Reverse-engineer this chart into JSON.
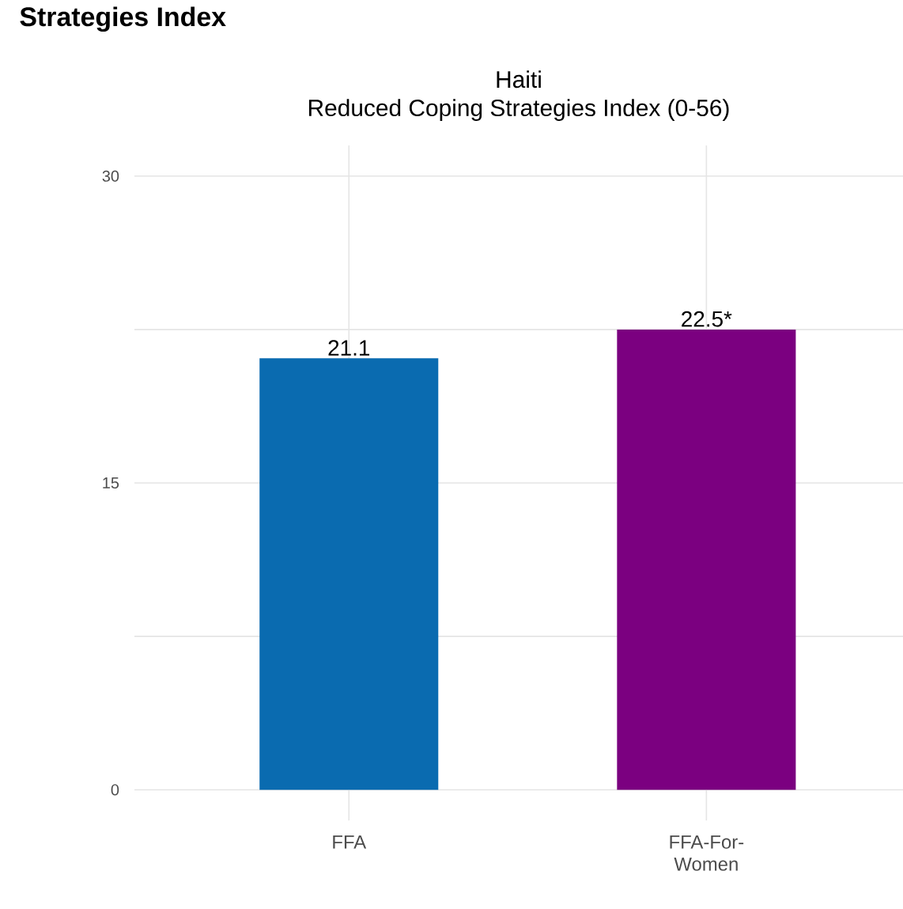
{
  "chart_data": {
    "type": "bar",
    "title": "Haiti",
    "subtitle": "Reduced Coping Strategies Index (0-56)",
    "annotations": [
      "Strategies Index"
    ],
    "categories": [
      "FFA",
      "FFA-For-Women"
    ],
    "values": [
      21.1,
      22.5
    ],
    "colors": [
      "#0a6bb0",
      "#7b0080"
    ],
    "value_labels": [
      "21.1",
      "22.5*"
    ],
    "ylim": [
      -1.5,
      31.5
    ],
    "yticks": [
      0,
      {
        "value": 7.5,
        "label": null
      },
      15,
      {
        "value": 22.5,
        "label": null
      },
      30
    ],
    "grid": true
  }
}
